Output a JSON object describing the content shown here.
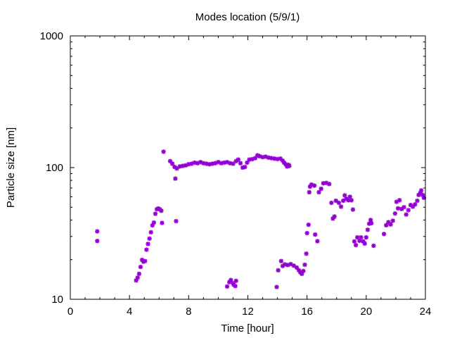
{
  "chart_data": {
    "type": "scatter",
    "title": "Modes location (5/9/1)",
    "xlabel": "Time [hour]",
    "ylabel": "Particle size [nm]",
    "xlim": [
      0,
      24
    ],
    "ylim": [
      10,
      1000
    ],
    "yscale": "log",
    "grid": false,
    "legend": "none",
    "marker": "asterisk",
    "color": "#9400d3",
    "x_ticks": [
      {
        "value": 0,
        "label": "0"
      },
      {
        "value": 4,
        "label": "4"
      },
      {
        "value": 8,
        "label": "8"
      },
      {
        "value": 12,
        "label": "12"
      },
      {
        "value": 16,
        "label": "16"
      },
      {
        "value": 20,
        "label": "20"
      },
      {
        "value": 24,
        "label": "24"
      }
    ],
    "y_ticks": [
      {
        "value": 10,
        "label": "10"
      },
      {
        "value": 100,
        "label": "100"
      },
      {
        "value": 1000,
        "label": "1000"
      }
    ],
    "series": [
      {
        "points": [
          [
            1.82,
            32.8
          ],
          [
            1.82,
            27.7
          ],
          [
            4.45,
            13.9
          ],
          [
            4.55,
            14.6
          ],
          [
            4.65,
            15.6
          ],
          [
            4.75,
            17.6
          ],
          [
            4.85,
            19.9
          ],
          [
            4.95,
            19.3
          ],
          [
            5.05,
            19.5
          ],
          [
            5.15,
            23.8
          ],
          [
            5.25,
            26.3
          ],
          [
            5.35,
            28.9
          ],
          [
            5.45,
            32.3
          ],
          [
            5.55,
            36.4
          ],
          [
            5.65,
            38.2
          ],
          [
            5.75,
            44.6
          ],
          [
            5.85,
            48.3
          ],
          [
            5.95,
            48.9
          ],
          [
            6.05,
            48.2
          ],
          [
            6.15,
            47.0
          ],
          [
            6.2,
            38.0
          ],
          [
            6.3,
            132.0
          ],
          [
            6.75,
            112.0
          ],
          [
            6.9,
            107.0
          ],
          [
            7.05,
            101.0
          ],
          [
            7.1,
            82.5
          ],
          [
            7.15,
            39.2
          ],
          [
            7.2,
            98.5
          ],
          [
            7.4,
            102.0
          ],
          [
            7.6,
            103.0
          ],
          [
            7.8,
            104.0
          ],
          [
            8.0,
            106.0
          ],
          [
            8.2,
            107.0
          ],
          [
            8.4,
            109.0
          ],
          [
            8.6,
            108.0
          ],
          [
            8.8,
            110.0
          ],
          [
            9.0,
            108.0
          ],
          [
            9.2,
            107.0
          ],
          [
            9.4,
            106.0
          ],
          [
            9.6,
            107.0
          ],
          [
            9.8,
            108.0
          ],
          [
            10.0,
            110.0
          ],
          [
            10.2,
            108.0
          ],
          [
            10.4,
            109.0
          ],
          [
            10.6,
            110.0
          ],
          [
            10.8,
            108.0
          ],
          [
            11.0,
            107.0
          ],
          [
            11.2,
            112.0
          ],
          [
            11.35,
            115.0
          ],
          [
            11.5,
            108.0
          ],
          [
            11.65,
            100.0
          ],
          [
            11.8,
            101.0
          ],
          [
            11.95,
            109.0
          ],
          [
            12.1,
            115.0
          ],
          [
            12.3,
            116.0
          ],
          [
            12.5,
            118.0
          ],
          [
            12.65,
            124.0
          ],
          [
            12.8,
            122.0
          ],
          [
            13.0,
            120.0
          ],
          [
            13.2,
            121.0
          ],
          [
            13.4,
            119.0
          ],
          [
            13.6,
            118.0
          ],
          [
            13.8,
            117.0
          ],
          [
            14.0,
            116.0
          ],
          [
            14.2,
            117.0
          ],
          [
            14.35,
            113.0
          ],
          [
            14.45,
            109.0
          ],
          [
            14.55,
            106.0
          ],
          [
            14.65,
            102.0
          ],
          [
            14.75,
            105.0
          ],
          [
            14.8,
            103.0
          ],
          [
            10.6,
            12.5
          ],
          [
            10.75,
            13.5
          ],
          [
            10.85,
            14.0
          ],
          [
            11.0,
            13.2
          ],
          [
            11.05,
            12.9
          ],
          [
            11.15,
            12.6
          ],
          [
            11.2,
            13.8
          ],
          [
            13.95,
            12.4
          ],
          [
            14.05,
            16.6
          ],
          [
            14.25,
            19.5
          ],
          [
            14.35,
            17.9
          ],
          [
            14.5,
            18.4
          ],
          [
            14.7,
            18.2
          ],
          [
            14.9,
            18.5
          ],
          [
            15.1,
            18.0
          ],
          [
            15.3,
            17.4
          ],
          [
            15.45,
            16.6
          ],
          [
            15.55,
            16.0
          ],
          [
            15.65,
            15.6
          ],
          [
            15.75,
            16.4
          ],
          [
            15.85,
            18.3
          ],
          [
            15.95,
            22.2
          ],
          [
            16.0,
            31.8
          ],
          [
            16.1,
            36.8
          ],
          [
            16.15,
            65.0
          ],
          [
            16.2,
            71.7
          ],
          [
            16.3,
            74.3
          ],
          [
            16.5,
            73.0
          ],
          [
            16.55,
            31.0
          ],
          [
            16.7,
            27.6
          ],
          [
            16.8,
            65.0
          ],
          [
            16.95,
            69.0
          ],
          [
            17.1,
            76.0
          ],
          [
            17.3,
            76.5
          ],
          [
            17.5,
            75.0
          ],
          [
            17.65,
            54.0
          ],
          [
            17.75,
            41.0
          ],
          [
            17.85,
            42.5
          ],
          [
            17.95,
            56.0
          ],
          [
            18.15,
            54.0
          ],
          [
            18.3,
            50.5
          ],
          [
            18.45,
            56.0
          ],
          [
            18.55,
            61.5
          ],
          [
            18.65,
            58.0
          ],
          [
            18.8,
            56.5
          ],
          [
            18.9,
            60.0
          ],
          [
            19.0,
            56.5
          ],
          [
            19.1,
            48.0
          ],
          [
            19.2,
            27.5
          ],
          [
            19.3,
            25.8
          ],
          [
            19.4,
            29.5
          ],
          [
            19.55,
            27.8
          ],
          [
            19.65,
            29.5
          ],
          [
            19.8,
            27.5
          ],
          [
            19.9,
            26.5
          ],
          [
            20.0,
            29.5
          ],
          [
            20.1,
            33.7
          ],
          [
            20.2,
            37.5
          ],
          [
            20.3,
            40.0
          ],
          [
            20.35,
            37.8
          ],
          [
            20.5,
            25.5
          ],
          [
            21.2,
            31.3
          ],
          [
            21.35,
            36.5
          ],
          [
            21.5,
            38.5
          ],
          [
            21.65,
            37.0
          ],
          [
            21.8,
            39.5
          ],
          [
            21.95,
            44.8
          ],
          [
            22.05,
            55.0
          ],
          [
            22.15,
            49.0
          ],
          [
            22.25,
            56.5
          ],
          [
            22.4,
            48.5
          ],
          [
            22.55,
            50.0
          ],
          [
            22.7,
            44.0
          ],
          [
            22.85,
            47.5
          ],
          [
            23.0,
            52.0
          ],
          [
            23.15,
            50.5
          ],
          [
            23.3,
            52.5
          ],
          [
            23.45,
            56.0
          ],
          [
            23.55,
            62.0
          ],
          [
            23.65,
            64.0
          ],
          [
            23.72,
            67.0
          ],
          [
            23.82,
            62.0
          ],
          [
            23.9,
            59.0
          ]
        ]
      }
    ]
  }
}
